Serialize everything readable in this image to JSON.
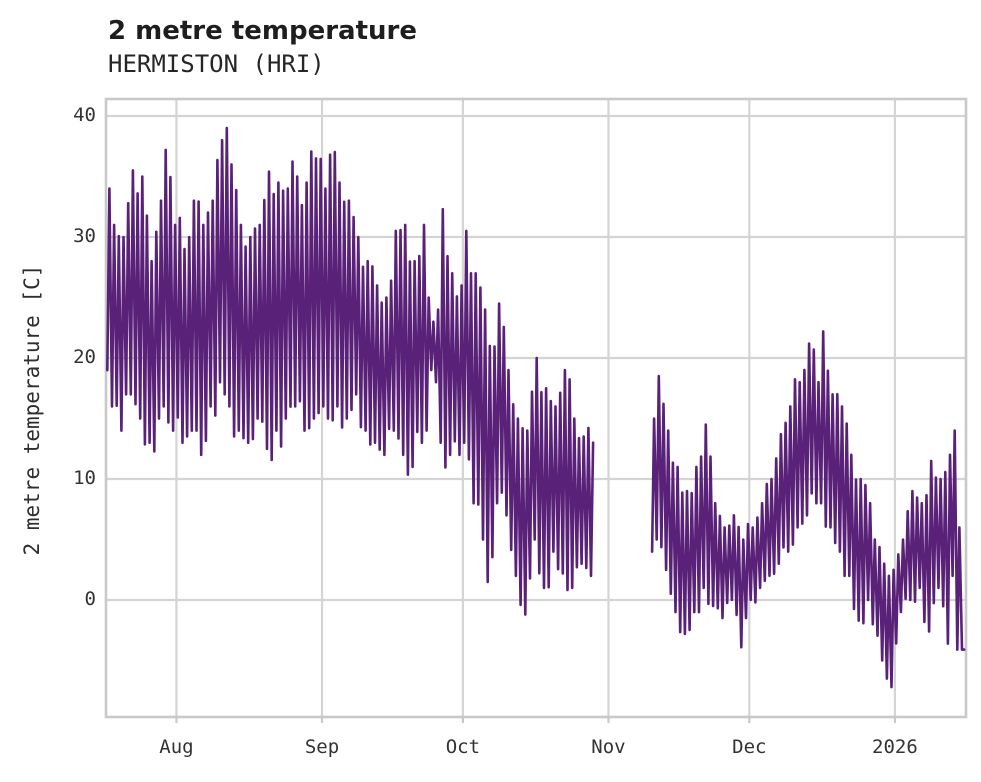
{
  "header": {
    "title": "2 metre temperature",
    "subtitle": "HERMISTON (HRI)"
  },
  "chart_data": {
    "type": "line",
    "title": "2 metre temperature",
    "subtitle": "HERMISTON (HRI)",
    "xlabel": "",
    "ylabel": "2 metre temperature [C]",
    "legend": "none",
    "grid": true,
    "colors": {
      "line": "#5a2179",
      "grid": "#d4d4d4",
      "border": "#c9c9c9",
      "tick_text": "#333333",
      "title_text": "#1e1e1e"
    },
    "yticks": [
      0,
      10,
      20,
      30,
      40
    ],
    "ylim": [
      -9.7,
      41.5
    ],
    "x_axis_unit": "days from start of plot (mid-July)",
    "xlim_days": [
      0,
      183.5
    ],
    "xticks": [
      {
        "label": "Aug",
        "day": 15
      },
      {
        "label": "Sep",
        "day": 46
      },
      {
        "label": "Oct",
        "day": 76
      },
      {
        "label": "Nov",
        "day": 107
      },
      {
        "label": "Dec",
        "day": 137
      },
      {
        "label": "2026",
        "day": 168
      }
    ],
    "data_gap_days": [
      104,
      115
    ],
    "series": [
      {
        "name": "2 metre temperature [C]",
        "sampling": "hourly line shown; values captured as daily min/max envelope nodes",
        "envelope": {
          "day": [
            0,
            1,
            3,
            5,
            7,
            9,
            11,
            12,
            14,
            16,
            18,
            20,
            22,
            24,
            25,
            26,
            28,
            30,
            32,
            34,
            36,
            38,
            40,
            42,
            44,
            46,
            47,
            49,
            51,
            53,
            55,
            57,
            59,
            61,
            63,
            65,
            67,
            68,
            69,
            70,
            71,
            73,
            75,
            76,
            78,
            80,
            81,
            83,
            85,
            87,
            89,
            91,
            93,
            95,
            97,
            99,
            101,
            103,
            116,
            117,
            119,
            121,
            123,
            125,
            127,
            129,
            131,
            133,
            135,
            137,
            139,
            141,
            143,
            145,
            147,
            149,
            151,
            152,
            154,
            156,
            158,
            160,
            162,
            163,
            165,
            166,
            167,
            169,
            171,
            173,
            175,
            177,
            179,
            180,
            181,
            182
          ],
          "tmin": [
            19,
            16,
            14,
            17,
            15,
            13,
            15,
            16,
            14,
            13,
            14,
            12,
            16,
            18,
            17,
            16,
            14,
            13,
            15,
            12.5,
            14,
            15,
            16,
            14,
            15,
            16,
            15,
            16,
            15,
            17,
            14,
            13,
            12,
            14,
            12,
            11,
            13,
            14,
            19,
            18,
            13,
            12,
            12,
            13,
            8,
            5,
            1.5,
            8,
            7,
            2,
            -1.2,
            5,
            1,
            4,
            2.2,
            1,
            3,
            2,
            4,
            5,
            2.5,
            -1,
            -2.8,
            -1,
            1,
            -0.5,
            -1.5,
            0,
            -3.9,
            0,
            1,
            2,
            3,
            4,
            6,
            7,
            8,
            8,
            6,
            4,
            2,
            -1.7,
            0,
            -2,
            -5,
            -6.5,
            -7.2,
            -1,
            0,
            1,
            -2.6,
            1,
            -3.6,
            2,
            -4.1,
            -4.1
          ],
          "tmax": [
            34,
            31,
            30,
            35.5,
            35,
            28,
            33,
            37.2,
            31,
            29,
            33,
            31,
            33,
            38,
            39,
            36,
            31,
            30,
            31,
            35.4,
            34.5,
            34,
            35,
            34.5,
            36.5,
            34,
            36.8,
            34.5,
            33,
            30,
            28,
            26,
            25,
            30.5,
            31,
            28,
            31,
            25,
            23,
            24,
            32.3,
            27,
            26,
            30.5,
            27,
            24,
            21,
            24.5,
            19,
            15,
            14,
            20,
            17.5,
            16,
            19,
            15,
            13.5,
            13,
            15,
            18.5,
            14,
            11,
            9,
            11,
            14.5,
            8,
            6,
            7,
            5,
            6,
            8,
            10,
            13.7,
            16,
            18,
            21.2,
            18,
            22.2,
            17,
            16,
            12,
            10,
            8,
            5,
            3,
            2,
            2.5,
            5,
            9,
            8,
            11.5,
            10,
            12,
            14,
            6,
            -4.1
          ]
        }
      }
    ]
  }
}
